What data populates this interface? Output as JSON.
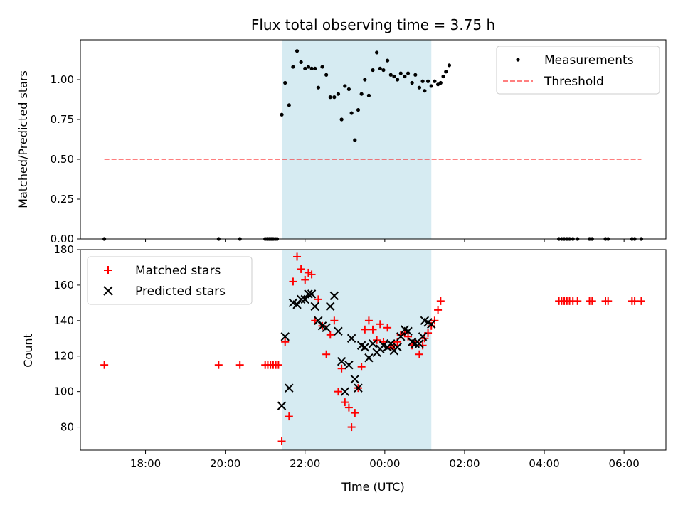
{
  "chart_data": [
    {
      "type": "scatter",
      "title": "Flux total observing time = 3.75 h",
      "xlabel": "",
      "ylabel": "Matched/Predicted stars",
      "xlim": [
        "16:22",
        "07:03"
      ],
      "ylim": [
        0,
        1.25
      ],
      "yticks": [
        "0.00",
        "0.25",
        "0.50",
        "0.75",
        "1.00"
      ],
      "shaded_interval": [
        "21:25",
        "01:10"
      ],
      "shade_color": "#add8e6",
      "grid": false,
      "legend_position": "upper right",
      "series": [
        {
          "name": "Measurements",
          "marker": "dot",
          "color": "#000000",
          "points": [
            [
              "16:58",
              0
            ],
            [
              "19:50",
              0
            ],
            [
              "20:22",
              0
            ],
            [
              "21:00",
              0
            ],
            [
              "21:03",
              0
            ],
            [
              "21:06",
              0
            ],
            [
              "21:09",
              0
            ],
            [
              "21:12",
              0
            ],
            [
              "21:15",
              0
            ],
            [
              "21:18",
              0
            ],
            [
              "21:25",
              0.78
            ],
            [
              "21:30",
              0.98
            ],
            [
              "21:36",
              0.84
            ],
            [
              "21:42",
              1.08
            ],
            [
              "21:48",
              1.18
            ],
            [
              "21:54",
              1.11
            ],
            [
              "22:00",
              1.07
            ],
            [
              "22:05",
              1.08
            ],
            [
              "22:10",
              1.07
            ],
            [
              "22:15",
              1.07
            ],
            [
              "22:20",
              0.95
            ],
            [
              "22:26",
              1.08
            ],
            [
              "22:32",
              1.03
            ],
            [
              "22:38",
              0.89
            ],
            [
              "22:44",
              0.89
            ],
            [
              "22:50",
              0.91
            ],
            [
              "22:55",
              0.75
            ],
            [
              "23:00",
              0.96
            ],
            [
              "23:06",
              0.94
            ],
            [
              "23:10",
              0.79
            ],
            [
              "23:15",
              0.62
            ],
            [
              "23:20",
              0.81
            ],
            [
              "23:25",
              0.91
            ],
            [
              "23:30",
              1.0
            ],
            [
              "23:36",
              0.9
            ],
            [
              "23:42",
              1.06
            ],
            [
              "23:48",
              1.17
            ],
            [
              "23:53",
              1.07
            ],
            [
              "23:58",
              1.06
            ],
            [
              "00:04",
              1.12
            ],
            [
              "00:09",
              1.03
            ],
            [
              "00:14",
              1.02
            ],
            [
              "00:19",
              1.0
            ],
            [
              "00:24",
              1.04
            ],
            [
              "00:30",
              1.02
            ],
            [
              "00:35",
              1.04
            ],
            [
              "00:41",
              0.98
            ],
            [
              "00:46",
              1.03
            ],
            [
              "00:52",
              0.95
            ],
            [
              "00:57",
              0.99
            ],
            [
              "01:00",
              0.93
            ],
            [
              "01:05",
              0.99
            ],
            [
              "01:10",
              0.96
            ],
            [
              "01:15",
              0.99
            ],
            [
              "01:20",
              0.97
            ],
            [
              "01:24",
              0.98
            ],
            [
              "01:28",
              1.02
            ],
            [
              "01:32",
              1.05
            ],
            [
              "01:37",
              1.09
            ],
            [
              "04:22",
              0
            ],
            [
              "04:26",
              0
            ],
            [
              "04:30",
              0
            ],
            [
              "04:34",
              0
            ],
            [
              "04:38",
              0
            ],
            [
              "04:43",
              0
            ],
            [
              "04:50",
              0
            ],
            [
              "05:08",
              0
            ],
            [
              "05:12",
              0
            ],
            [
              "05:32",
              0
            ],
            [
              "05:36",
              0
            ],
            [
              "06:12",
              0
            ],
            [
              "06:16",
              0
            ],
            [
              "06:26",
              0
            ]
          ]
        },
        {
          "name": "Threshold",
          "type": "line",
          "style": "dashed",
          "color": "#ff0000",
          "alpha": 0.5,
          "x": [
            "16:58",
            "06:26"
          ],
          "values": [
            0.5,
            0.5
          ]
        }
      ]
    },
    {
      "type": "scatter",
      "title": "",
      "xlabel": "Time (UTC)",
      "ylabel": "Count",
      "xlim": [
        "16:22",
        "07:03"
      ],
      "ylim": [
        67,
        180
      ],
      "yticks": [
        "80",
        "100",
        "120",
        "140",
        "160",
        "180"
      ],
      "xticks": [
        "18:00",
        "20:00",
        "22:00",
        "00:00",
        "02:00",
        "04:00",
        "06:00"
      ],
      "shaded_interval": [
        "21:25",
        "01:10"
      ],
      "shade_color": "#add8e6",
      "grid": false,
      "legend_position": "upper left",
      "series": [
        {
          "name": "Matched stars",
          "marker": "plus",
          "color": "#ff0000",
          "points": [
            [
              "16:58",
              115
            ],
            [
              "19:50",
              115
            ],
            [
              "20:22",
              115
            ],
            [
              "21:00",
              115
            ],
            [
              "21:04",
              115
            ],
            [
              "21:08",
              115
            ],
            [
              "21:12",
              115
            ],
            [
              "21:16",
              115
            ],
            [
              "21:20",
              115
            ],
            [
              "21:25",
              72
            ],
            [
              "21:30",
              128
            ],
            [
              "21:36",
              86
            ],
            [
              "21:42",
              162
            ],
            [
              "21:48",
              176
            ],
            [
              "21:54",
              169
            ],
            [
              "22:00",
              163
            ],
            [
              "22:05",
              167
            ],
            [
              "22:10",
              166
            ],
            [
              "22:15",
              140
            ],
            [
              "22:20",
              152
            ],
            [
              "22:26",
              137
            ],
            [
              "22:32",
              121
            ],
            [
              "22:38",
              132
            ],
            [
              "22:44",
              140
            ],
            [
              "22:50",
              100
            ],
            [
              "22:55",
              113
            ],
            [
              "23:00",
              94
            ],
            [
              "23:06",
              91
            ],
            [
              "23:10",
              80
            ],
            [
              "23:15",
              88
            ],
            [
              "23:20",
              102
            ],
            [
              "23:25",
              114
            ],
            [
              "23:30",
              135
            ],
            [
              "23:36",
              140
            ],
            [
              "23:42",
              135
            ],
            [
              "23:48",
              129
            ],
            [
              "23:53",
              138
            ],
            [
              "23:58",
              128
            ],
            [
              "00:04",
              136
            ],
            [
              "00:09",
              125
            ],
            [
              "00:14",
              126
            ],
            [
              "00:19",
              128
            ],
            [
              "00:24",
              132
            ],
            [
              "00:30",
              133
            ],
            [
              "00:35",
              131
            ],
            [
              "00:41",
              126
            ],
            [
              "00:46",
              128
            ],
            [
              "00:52",
              121
            ],
            [
              "00:57",
              126
            ],
            [
              "01:00",
              130
            ],
            [
              "01:05",
              133
            ],
            [
              "01:10",
              137
            ],
            [
              "01:15",
              140
            ],
            [
              "01:20",
              146
            ],
            [
              "01:24",
              151
            ],
            [
              "04:22",
              151
            ],
            [
              "04:26",
              151
            ],
            [
              "04:30",
              151
            ],
            [
              "04:34",
              151
            ],
            [
              "04:38",
              151
            ],
            [
              "04:43",
              151
            ],
            [
              "04:50",
              151
            ],
            [
              "05:08",
              151
            ],
            [
              "05:12",
              151
            ],
            [
              "05:32",
              151
            ],
            [
              "05:36",
              151
            ],
            [
              "06:12",
              151
            ],
            [
              "06:16",
              151
            ],
            [
              "06:26",
              151
            ]
          ]
        },
        {
          "name": "Predicted stars",
          "marker": "x",
          "color": "#000000",
          "points": [
            [
              "21:25",
              92
            ],
            [
              "21:30",
              131
            ],
            [
              "21:36",
              102
            ],
            [
              "21:42",
              150
            ],
            [
              "21:48",
              149
            ],
            [
              "21:54",
              152
            ],
            [
              "22:00",
              152
            ],
            [
              "22:05",
              155
            ],
            [
              "22:10",
              155
            ],
            [
              "22:15",
              148
            ],
            [
              "22:20",
              140
            ],
            [
              "22:26",
              137
            ],
            [
              "22:32",
              136
            ],
            [
              "22:38",
              148
            ],
            [
              "22:44",
              154
            ],
            [
              "22:50",
              134
            ],
            [
              "22:55",
              117
            ],
            [
              "23:00",
              100
            ],
            [
              "23:06",
              115
            ],
            [
              "23:10",
              130
            ],
            [
              "23:15",
              107
            ],
            [
              "23:20",
              102
            ],
            [
              "23:25",
              126
            ],
            [
              "23:30",
              125
            ],
            [
              "23:36",
              119
            ],
            [
              "23:42",
              127
            ],
            [
              "23:48",
              122
            ],
            [
              "23:53",
              124
            ],
            [
              "23:58",
              126
            ],
            [
              "00:04",
              125
            ],
            [
              "00:09",
              127
            ],
            [
              "00:14",
              123
            ],
            [
              "00:19",
              125
            ],
            [
              "00:24",
              131
            ],
            [
              "00:30",
              135
            ],
            [
              "00:35",
              134
            ],
            [
              "00:41",
              128
            ],
            [
              "00:46",
              127
            ],
            [
              "00:52",
              127
            ],
            [
              "00:57",
              131
            ],
            [
              "01:00",
              140
            ],
            [
              "01:05",
              139
            ],
            [
              "01:10",
              138
            ]
          ]
        }
      ]
    }
  ]
}
